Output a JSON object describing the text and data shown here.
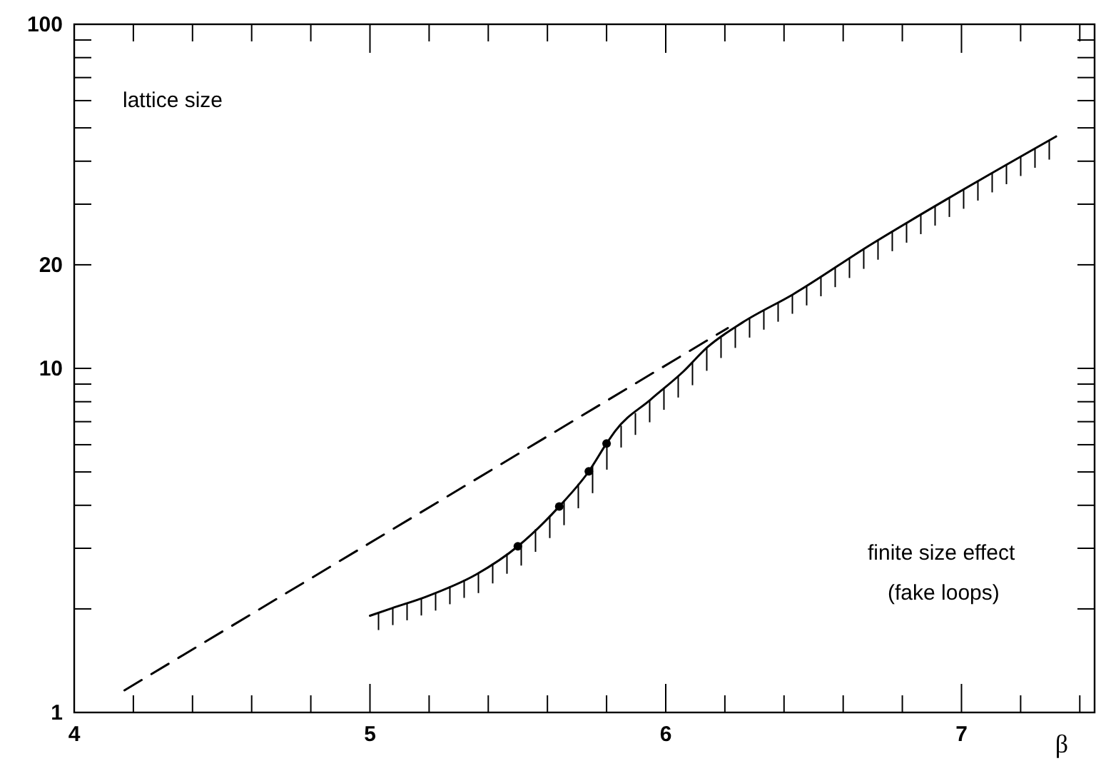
{
  "chart_data": {
    "type": "line",
    "xlabel": "β",
    "log": "y",
    "xlim": [
      4,
      7.45
    ],
    "ylim": [
      1,
      100
    ],
    "xticks": [
      4,
      {
        "value": 4.2,
        "label": null
      },
      {
        "value": 4.4,
        "label": null
      },
      {
        "value": 4.6,
        "label": null
      },
      {
        "value": 4.8,
        "label": null
      },
      5,
      {
        "value": 5.2,
        "label": null
      },
      {
        "value": 5.4,
        "label": null
      },
      {
        "value": 5.6,
        "label": null
      },
      {
        "value": 5.8,
        "label": null
      },
      6,
      {
        "value": 6.2,
        "label": null
      },
      {
        "value": 6.4,
        "label": null
      },
      {
        "value": 6.6,
        "label": null
      },
      {
        "value": 6.8,
        "label": null
      },
      7,
      {
        "value": 7.2,
        "label": null
      },
      {
        "value": 7.4,
        "label": null
      }
    ],
    "yticks": [
      1,
      {
        "value": 2,
        "label": null
      },
      {
        "value": 3,
        "label": null
      },
      {
        "value": 4,
        "label": null
      },
      {
        "value": 5,
        "label": null
      },
      {
        "value": 6,
        "label": null
      },
      {
        "value": 7,
        "label": null
      },
      {
        "value": 8,
        "label": null
      },
      {
        "value": 9,
        "label": null
      },
      10,
      20,
      {
        "value": 30,
        "label": null
      },
      {
        "value": 40,
        "label": null
      },
      {
        "value": 50,
        "label": null
      },
      {
        "value": 60,
        "label": null
      },
      {
        "value": 70,
        "label": null
      },
      {
        "value": 80,
        "label": null
      },
      {
        "value": 90,
        "label": null
      },
      100
    ],
    "grid": false,
    "series": [
      {
        "color": "#000000",
        "line_style": "solid",
        "marker": "none",
        "x": [
          5.0,
          5.075,
          5.19,
          5.36,
          5.5,
          5.64,
          5.74,
          5.8,
          5.83,
          5.95,
          6.06,
          6.14,
          6.26,
          6.43,
          6.69,
          6.95,
          7.32
        ],
        "values": [
          1.91,
          2.01,
          2.17,
          2.52,
          3.04,
          3.97,
          5.02,
          6.05,
          6.59,
          8.13,
          9.8,
          11.5,
          13.6,
          16.4,
          22.8,
          31.0,
          47.2
        ]
      },
      {
        "type": "scatter",
        "color": "#000000",
        "marker": "circle",
        "x": [
          5.5,
          5.64,
          5.74,
          5.8
        ],
        "values": [
          3.04,
          3.97,
          5.02,
          6.05
        ]
      },
      {
        "color": "#000000",
        "line_style": "dashed",
        "marker": "none",
        "x": [
          4.17,
          6.21
        ],
        "values": [
          1.16,
          13.1
        ]
      }
    ],
    "annotations": [
      "lattice size",
      "finite size effect",
      "(fake loops)"
    ]
  }
}
